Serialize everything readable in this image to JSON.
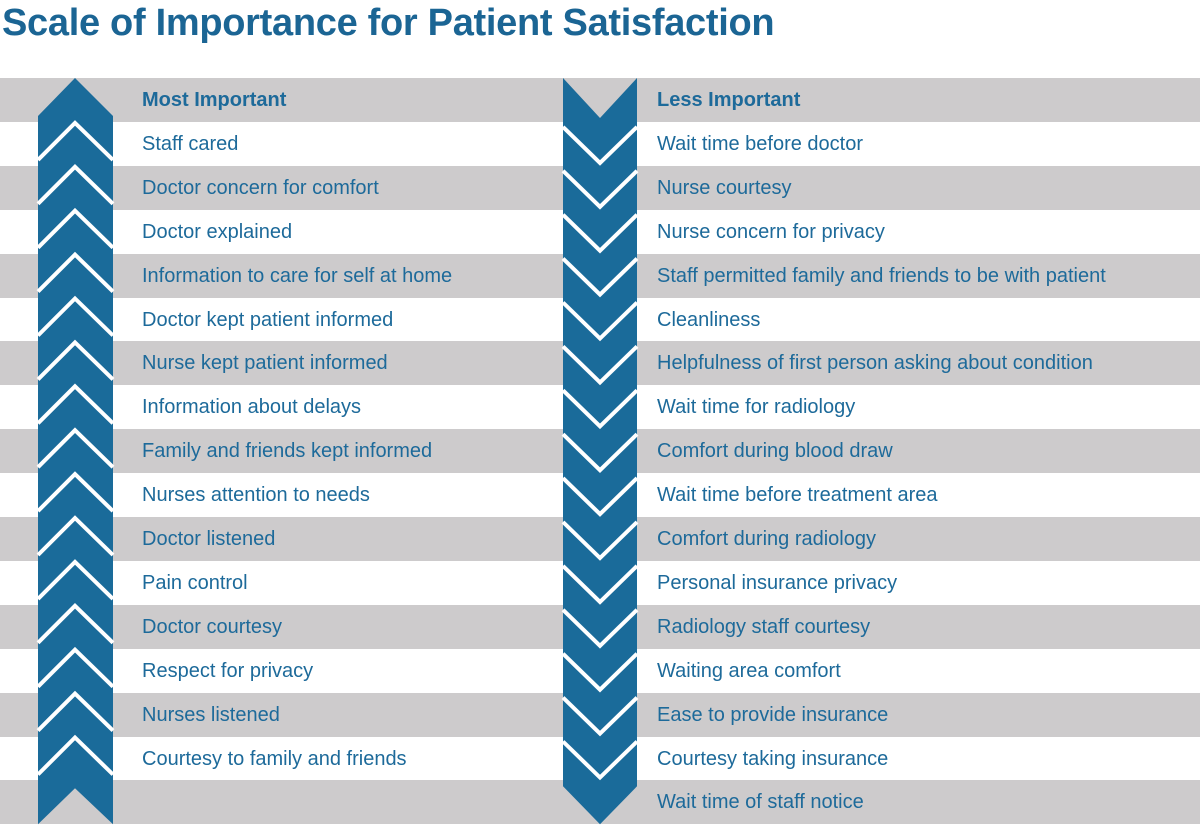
{
  "title": "Scale of Importance for Patient Satisfaction",
  "colors": {
    "accent": "#1a6b9a",
    "band": "#cdcbcc",
    "text": "#1d6a9a"
  },
  "left_column": {
    "heading": "Most Important",
    "arrow": "up-chevron-arrow",
    "items": [
      "Staff cared",
      "Doctor concern for comfort",
      "Doctor explained",
      "Information to care for self at home",
      "Doctor kept patient informed",
      "Nurse kept patient informed",
      "Information about delays",
      "Family and friends kept informed",
      "Nurses attention to needs",
      "Doctor listened",
      "Pain control",
      "Doctor courtesy",
      "Respect for privacy",
      "Nurses listened",
      "Courtesy to family and friends"
    ]
  },
  "right_column": {
    "heading": "Less Important",
    "arrow": "down-chevron-arrow",
    "items": [
      "Wait time before doctor",
      "Nurse courtesy",
      "Nurse concern for privacy",
      "Staff permitted family and friends to be with patient",
      "Cleanliness",
      "Helpfulness of first person asking about condition",
      "Wait time for radiology",
      "Comfort during blood draw",
      "Wait time before treatment area",
      "Comfort during radiology",
      "Personal insurance privacy",
      "Radiology staff courtesy",
      "Waiting area comfort",
      "Ease to provide insurance",
      "Courtesy taking insurance",
      "Wait time of staff notice"
    ]
  }
}
